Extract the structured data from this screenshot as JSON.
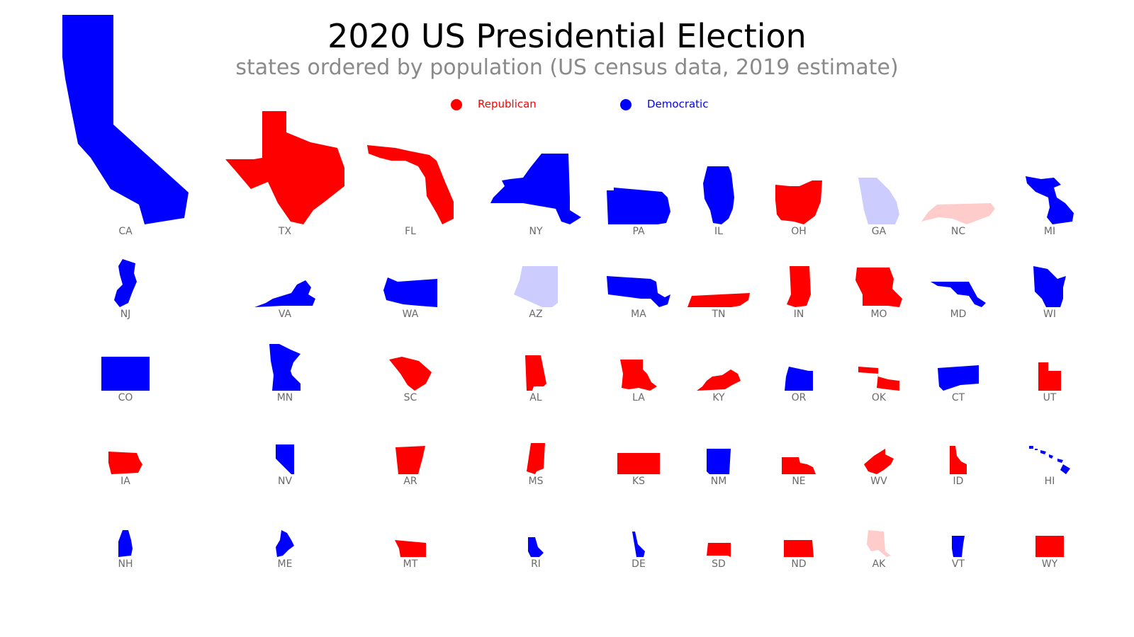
{
  "title": "2020 US Presidential Election",
  "subtitle": "states ordered by population (US census data, 2019 estimate)",
  "legend": {
    "republican": {
      "label": "Republican",
      "color": "#ff0000"
    },
    "democratic": {
      "label": "Democratic",
      "color": "#0000ff"
    }
  },
  "colors": {
    "R": "#ff0000",
    "D": "#0000ff",
    "lean_R": "#ffcccc",
    "lean_D": "#ccccff"
  },
  "chart_data": {
    "type": "cartogram",
    "states": [
      {
        "abbr": "CA",
        "party": "D"
      },
      {
        "abbr": "TX",
        "party": "R"
      },
      {
        "abbr": "FL",
        "party": "R"
      },
      {
        "abbr": "NY",
        "party": "D"
      },
      {
        "abbr": "PA",
        "party": "D"
      },
      {
        "abbr": "IL",
        "party": "D"
      },
      {
        "abbr": "OH",
        "party": "R"
      },
      {
        "abbr": "GA",
        "party": "lean_D"
      },
      {
        "abbr": "NC",
        "party": "lean_R"
      },
      {
        "abbr": "MI",
        "party": "D"
      },
      {
        "abbr": "NJ",
        "party": "D"
      },
      {
        "abbr": "VA",
        "party": "D"
      },
      {
        "abbr": "WA",
        "party": "D"
      },
      {
        "abbr": "AZ",
        "party": "lean_D"
      },
      {
        "abbr": "MA",
        "party": "D"
      },
      {
        "abbr": "TN",
        "party": "R"
      },
      {
        "abbr": "IN",
        "party": "R"
      },
      {
        "abbr": "MO",
        "party": "R"
      },
      {
        "abbr": "MD",
        "party": "D"
      },
      {
        "abbr": "WI",
        "party": "D"
      },
      {
        "abbr": "CO",
        "party": "D"
      },
      {
        "abbr": "MN",
        "party": "D"
      },
      {
        "abbr": "SC",
        "party": "R"
      },
      {
        "abbr": "AL",
        "party": "R"
      },
      {
        "abbr": "LA",
        "party": "R"
      },
      {
        "abbr": "KY",
        "party": "R"
      },
      {
        "abbr": "OR",
        "party": "D"
      },
      {
        "abbr": "OK",
        "party": "R"
      },
      {
        "abbr": "CT",
        "party": "D"
      },
      {
        "abbr": "UT",
        "party": "R"
      },
      {
        "abbr": "IA",
        "party": "R"
      },
      {
        "abbr": "NV",
        "party": "D"
      },
      {
        "abbr": "AR",
        "party": "R"
      },
      {
        "abbr": "MS",
        "party": "R"
      },
      {
        "abbr": "KS",
        "party": "R"
      },
      {
        "abbr": "NM",
        "party": "D"
      },
      {
        "abbr": "NE",
        "party": "R"
      },
      {
        "abbr": "WV",
        "party": "R"
      },
      {
        "abbr": "ID",
        "party": "R"
      },
      {
        "abbr": "HI",
        "party": "D"
      },
      {
        "abbr": "NH",
        "party": "D"
      },
      {
        "abbr": "ME",
        "party": "D"
      },
      {
        "abbr": "MT",
        "party": "R"
      },
      {
        "abbr": "RI",
        "party": "D"
      },
      {
        "abbr": "DE",
        "party": "D"
      },
      {
        "abbr": "SD",
        "party": "R"
      },
      {
        "abbr": "ND",
        "party": "R"
      },
      {
        "abbr": "AK",
        "party": "lean_R"
      },
      {
        "abbr": "VT",
        "party": "D"
      },
      {
        "abbr": "WY",
        "party": "R"
      }
    ]
  }
}
